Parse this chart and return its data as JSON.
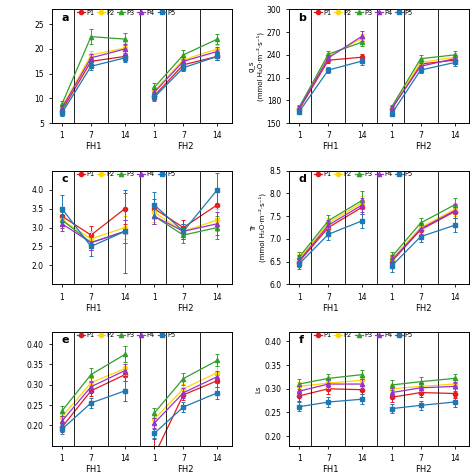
{
  "panels": [
    "a",
    "b",
    "c",
    "d",
    "e",
    "f"
  ],
  "series": [
    "P1",
    "P2",
    "P3",
    "P4",
    "P5"
  ],
  "colors": [
    "#e31a1c",
    "#ffd700",
    "#33a02c",
    "#9932cc",
    "#1f78b4"
  ],
  "markers": [
    "o",
    "o",
    "^",
    "^",
    "s"
  ],
  "panel_a": {
    "ylabel": "",
    "ylim": [
      5,
      28
    ],
    "yticks": [
      5,
      10,
      15,
      20,
      25
    ],
    "FH1": {
      "P1": [
        7.5,
        17.5,
        18.5
      ],
      "P2": [
        8.2,
        18.8,
        20.2
      ],
      "P3": [
        8.8,
        22.5,
        22.0
      ],
      "P4": [
        8.0,
        18.2,
        20.0
      ],
      "P5": [
        7.0,
        16.5,
        18.2
      ]
    },
    "FH1_err": {
      "P1": [
        0.6,
        0.7,
        1.0
      ],
      "P2": [
        0.6,
        0.8,
        1.0
      ],
      "P3": [
        0.7,
        1.5,
        1.2
      ],
      "P4": [
        0.6,
        0.7,
        1.0
      ],
      "P5": [
        0.6,
        0.8,
        0.9
      ]
    },
    "FH2": {
      "P1": [
        10.5,
        16.8,
        18.5
      ],
      "P2": [
        11.5,
        17.8,
        20.0
      ],
      "P3": [
        12.2,
        18.8,
        22.0
      ],
      "P4": [
        11.2,
        17.5,
        19.5
      ],
      "P5": [
        10.2,
        16.2,
        18.5
      ]
    },
    "FH2_err": {
      "P1": [
        0.8,
        0.7,
        0.8
      ],
      "P2": [
        0.8,
        0.8,
        0.9
      ],
      "P3": [
        0.9,
        0.9,
        1.0
      ],
      "P4": [
        0.7,
        0.8,
        0.9
      ],
      "P5": [
        0.7,
        0.7,
        0.8
      ]
    }
  },
  "panel_b": {
    "ylabel": "g_s\n(mmol H₂O·m⁻²·s⁻¹)",
    "ylim": [
      150,
      300
    ],
    "yticks": [
      150,
      180,
      210,
      240,
      270,
      300
    ],
    "FH1": {
      "P1": [
        168,
        233,
        237
      ],
      "P2": [
        170,
        238,
        262
      ],
      "P3": [
        171,
        241,
        257
      ],
      "P4": [
        169,
        236,
        265
      ],
      "P5": [
        165,
        220,
        232
      ]
    },
    "FH1_err": {
      "P1": [
        3,
        4,
        4
      ],
      "P2": [
        3,
        4,
        5
      ],
      "P3": [
        3,
        4,
        5
      ],
      "P4": [
        3,
        4,
        6
      ],
      "P5": [
        3,
        4,
        5
      ]
    },
    "FH2": {
      "P1": [
        168,
        228,
        233
      ],
      "P2": [
        170,
        230,
        237
      ],
      "P3": [
        171,
        235,
        240
      ],
      "P4": [
        169,
        225,
        235
      ],
      "P5": [
        162,
        220,
        230
      ]
    },
    "FH2_err": {
      "P1": [
        3,
        4,
        4
      ],
      "P2": [
        3,
        4,
        5
      ],
      "P3": [
        3,
        5,
        5
      ],
      "P4": [
        3,
        4,
        5
      ],
      "P5": [
        3,
        4,
        4
      ]
    }
  },
  "panel_c": {
    "ylabel": "",
    "ylim": [
      1.5,
      4.5
    ],
    "yticks": [
      2.0,
      2.5,
      3.0,
      3.5,
      4.0
    ],
    "FH1": {
      "P1": [
        3.3,
        2.8,
        3.5
      ],
      "P2": [
        3.2,
        2.7,
        3.0
      ],
      "P3": [
        3.2,
        2.6,
        2.9
      ],
      "P4": [
        3.1,
        2.6,
        2.9
      ],
      "P5": [
        3.5,
        2.5,
        2.9
      ]
    },
    "FH1_err": {
      "P1": [
        0.25,
        0.25,
        0.4
      ],
      "P2": [
        0.2,
        0.2,
        0.3
      ],
      "P3": [
        0.2,
        0.2,
        0.3
      ],
      "P4": [
        0.2,
        0.2,
        0.3
      ],
      "P5": [
        0.35,
        0.25,
        1.1
      ]
    },
    "FH2": {
      "P1": [
        3.5,
        3.0,
        3.6
      ],
      "P2": [
        3.4,
        2.9,
        3.2
      ],
      "P3": [
        3.3,
        2.8,
        3.0
      ],
      "P4": [
        3.3,
        2.9,
        3.1
      ],
      "P5": [
        3.6,
        2.9,
        4.0
      ]
    },
    "FH2_err": {
      "P1": [
        0.25,
        0.2,
        0.35
      ],
      "P2": [
        0.25,
        0.2,
        0.3
      ],
      "P3": [
        0.2,
        0.2,
        0.3
      ],
      "P4": [
        0.2,
        0.2,
        0.3
      ],
      "P5": [
        0.35,
        0.2,
        0.45
      ]
    }
  },
  "panel_d": {
    "ylabel": "Tr\n(mmol H₂O·m⁻²·s⁻¹)",
    "ylim": [
      6.0,
      8.5
    ],
    "yticks": [
      6.0,
      6.5,
      7.0,
      7.5,
      8.0,
      8.5
    ],
    "FH1": {
      "P1": [
        6.5,
        7.25,
        7.7
      ],
      "P2": [
        6.55,
        7.35,
        7.8
      ],
      "P3": [
        6.6,
        7.4,
        7.85
      ],
      "P4": [
        6.52,
        7.3,
        7.75
      ],
      "P5": [
        6.45,
        7.1,
        7.4
      ]
    },
    "FH1_err": {
      "P1": [
        0.12,
        0.12,
        0.15
      ],
      "P2": [
        0.12,
        0.12,
        0.15
      ],
      "P3": [
        0.12,
        0.12,
        0.2
      ],
      "P4": [
        0.12,
        0.12,
        0.15
      ],
      "P5": [
        0.12,
        0.12,
        0.15
      ]
    },
    "FH2": {
      "P1": [
        6.5,
        7.2,
        7.6
      ],
      "P2": [
        6.55,
        7.25,
        7.65
      ],
      "P3": [
        6.6,
        7.35,
        7.75
      ],
      "P4": [
        6.52,
        7.22,
        7.62
      ],
      "P5": [
        6.4,
        7.05,
        7.3
      ]
    },
    "FH2_err": {
      "P1": [
        0.12,
        0.12,
        0.15
      ],
      "P2": [
        0.12,
        0.12,
        0.15
      ],
      "P3": [
        0.12,
        0.12,
        0.15
      ],
      "P4": [
        0.12,
        0.12,
        0.15
      ],
      "P5": [
        0.12,
        0.12,
        0.15
      ]
    }
  },
  "panel_e": {
    "ylabel": "",
    "ylim": [
      0.15,
      0.43
    ],
    "yticks": [
      0.2,
      0.25,
      0.3,
      0.35,
      0.4
    ],
    "FH1": {
      "P1": [
        0.195,
        0.285,
        0.325
      ],
      "P2": [
        0.22,
        0.305,
        0.34
      ],
      "P3": [
        0.235,
        0.325,
        0.375
      ],
      "P4": [
        0.21,
        0.295,
        0.335
      ],
      "P5": [
        0.19,
        0.255,
        0.285
      ]
    },
    "FH1_err": {
      "P1": [
        0.012,
        0.012,
        0.015
      ],
      "P2": [
        0.012,
        0.012,
        0.015
      ],
      "P3": [
        0.012,
        0.015,
        0.02
      ],
      "P4": [
        0.012,
        0.012,
        0.015
      ],
      "P5": [
        0.012,
        0.012,
        0.025
      ]
    },
    "FH2": {
      "P1": [
        0.125,
        0.275,
        0.31
      ],
      "P2": [
        0.215,
        0.29,
        0.33
      ],
      "P3": [
        0.23,
        0.315,
        0.36
      ],
      "P4": [
        0.205,
        0.28,
        0.32
      ],
      "P5": [
        0.18,
        0.245,
        0.28
      ]
    },
    "FH2_err": {
      "P1": [
        0.04,
        0.012,
        0.015
      ],
      "P2": [
        0.012,
        0.012,
        0.015
      ],
      "P3": [
        0.012,
        0.015,
        0.015
      ],
      "P4": [
        0.012,
        0.012,
        0.015
      ],
      "P5": [
        0.012,
        0.012,
        0.015
      ]
    }
  },
  "panel_f": {
    "ylabel": "Ls",
    "ylim": [
      0.18,
      0.42
    ],
    "yticks": [
      0.2,
      0.25,
      0.3,
      0.35,
      0.4
    ],
    "FH1": {
      "P1": [
        0.285,
        0.3,
        0.298
      ],
      "P2": [
        0.305,
        0.312,
        0.318
      ],
      "P3": [
        0.31,
        0.322,
        0.33
      ],
      "P4": [
        0.295,
        0.31,
        0.31
      ],
      "P5": [
        0.262,
        0.272,
        0.278
      ]
    },
    "FH1_err": {
      "P1": [
        0.01,
        0.01,
        0.01
      ],
      "P2": [
        0.01,
        0.01,
        0.01
      ],
      "P3": [
        0.01,
        0.01,
        0.01
      ],
      "P4": [
        0.01,
        0.01,
        0.01
      ],
      "P5": [
        0.01,
        0.01,
        0.01
      ]
    },
    "FH2": {
      "P1": [
        0.282,
        0.292,
        0.29
      ],
      "P2": [
        0.3,
        0.305,
        0.31
      ],
      "P3": [
        0.308,
        0.315,
        0.322
      ],
      "P4": [
        0.292,
        0.302,
        0.305
      ],
      "P5": [
        0.258,
        0.265,
        0.272
      ]
    },
    "FH2_err": {
      "P1": [
        0.01,
        0.01,
        0.01
      ],
      "P2": [
        0.01,
        0.01,
        0.01
      ],
      "P3": [
        0.01,
        0.01,
        0.01
      ],
      "P4": [
        0.01,
        0.01,
        0.01
      ],
      "P5": [
        0.01,
        0.01,
        0.01
      ]
    }
  }
}
